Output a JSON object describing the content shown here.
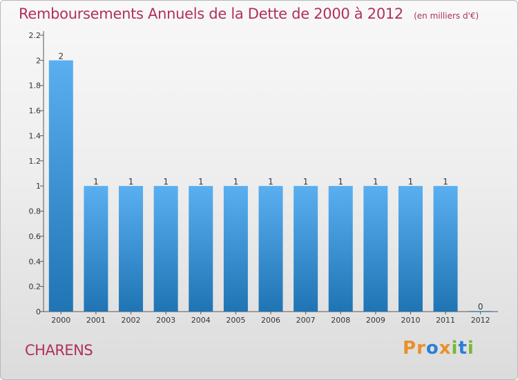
{
  "header": {
    "title": "Remboursements Annuels de la Dette de 2000 à 2012",
    "unit": "(en milliers d'€)"
  },
  "footer": {
    "town": "CHARENS",
    "logo": "Proxiti"
  },
  "colors": {
    "title": "#b0305a",
    "bar_top": "#5aaff0",
    "bar_bottom": "#1f74b4",
    "logo": [
      "#e8902a",
      "#e8902a",
      "#2a7fd4",
      "#e8902a",
      "#7ab832",
      "#2a7fd4",
      "#7ab832"
    ]
  },
  "chart_data": {
    "type": "bar",
    "categories": [
      "2000",
      "2001",
      "2002",
      "2003",
      "2004",
      "2005",
      "2006",
      "2007",
      "2008",
      "2009",
      "2010",
      "2011",
      "2012"
    ],
    "values": [
      2,
      1,
      1,
      1,
      1,
      1,
      1,
      1,
      1,
      1,
      1,
      1,
      0
    ],
    "data_labels": [
      "2",
      "1",
      "1",
      "1",
      "1",
      "1",
      "1",
      "1",
      "1",
      "1",
      "1",
      "1",
      "0"
    ],
    "title": "Remboursements Annuels de la Dette de 2000 à 2012",
    "xlabel": "",
    "ylabel": "",
    "ylim": [
      0,
      2.2
    ],
    "yticks": [
      0,
      0.2,
      0.4,
      0.6,
      0.8,
      1,
      1.2,
      1.4,
      1.6,
      1.8,
      2,
      2.2
    ],
    "ytick_labels": [
      "0",
      "0.2",
      "0.4",
      "0.6",
      "0.8",
      "1",
      "1.2",
      "1.4",
      "1.6",
      "1.8",
      "2",
      "2.2"
    ],
    "grid": false,
    "legend": "none"
  }
}
